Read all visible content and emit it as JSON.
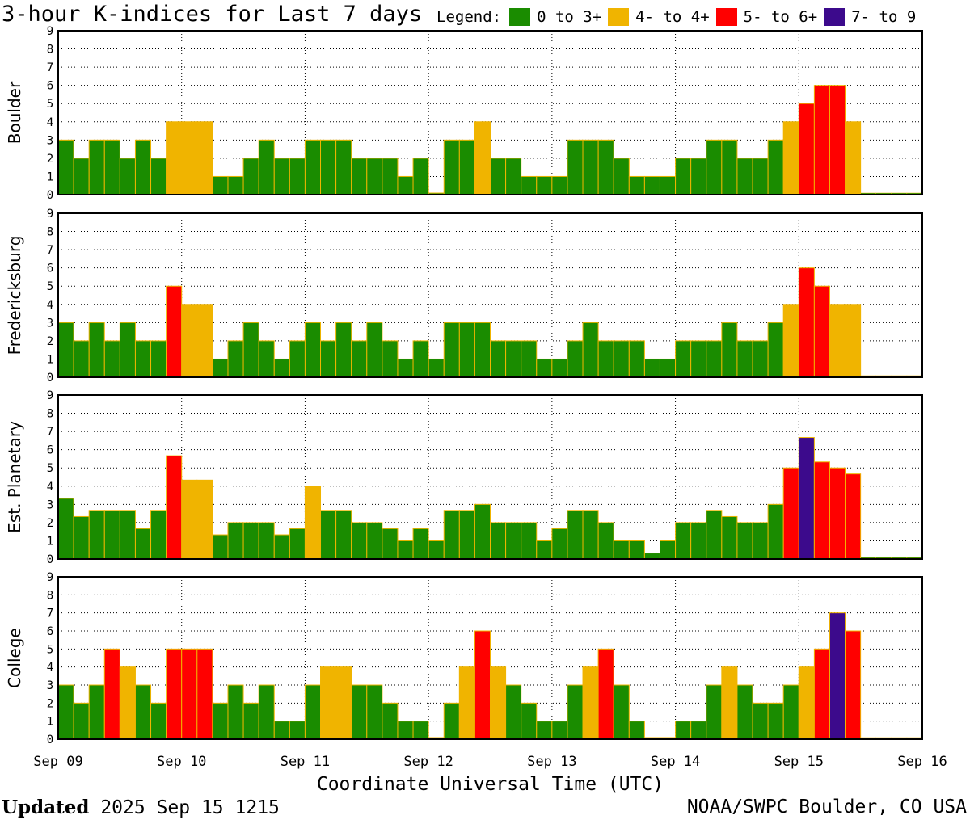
{
  "title": "3-hour K-indices for Last 7 days",
  "legend": {
    "label": "Legend:",
    "items": [
      {
        "label": "0 to 3+",
        "color": "#1a8c00"
      },
      {
        "label": "4- to 4+",
        "color": "#f0b400"
      },
      {
        "label": "5- to 6+",
        "color": "#ff0000"
      },
      {
        "label": "7- to 9",
        "color": "#3c0a8c"
      }
    ]
  },
  "footer": {
    "updated_label": "Updated",
    "updated_value": "2025 Sep 15 1215",
    "credit": "NOAA/SWPC Boulder, CO USA"
  },
  "chart_data": {
    "type": "bar",
    "title": "3-hour K-indices for Last 7 days",
    "xlabel": "Coordinate Universal Time (UTC)",
    "x_ticks": [
      "Sep 09",
      "Sep 10",
      "Sep 11",
      "Sep 12",
      "Sep 13",
      "Sep 14",
      "Sep 15",
      "Sep 16"
    ],
    "ylim": [
      0,
      9
    ],
    "y_ticks": [
      "0",
      "1",
      "2",
      "3",
      "4",
      "5",
      "6",
      "7",
      "8",
      "9"
    ],
    "grid": true,
    "bins_per_day": 8,
    "series": [
      {
        "name": "Boulder",
        "values": [
          3,
          2,
          3,
          3,
          2,
          3,
          2,
          4,
          4,
          4,
          1,
          1,
          2,
          3,
          2,
          2,
          3,
          3,
          3,
          2,
          2,
          2,
          1,
          2,
          0,
          3,
          3,
          4,
          2,
          2,
          1,
          1,
          1,
          3,
          3,
          3,
          2,
          1,
          1,
          1,
          2,
          2,
          3,
          3,
          2,
          2,
          3,
          4,
          5,
          6,
          6,
          4,
          null,
          null,
          null,
          null
        ]
      },
      {
        "name": "Fredericksburg",
        "values": [
          3,
          2,
          3,
          2,
          3,
          2,
          2,
          5,
          4,
          4,
          1,
          2,
          3,
          2,
          1,
          2,
          3,
          2,
          3,
          2,
          3,
          2,
          1,
          2,
          1,
          3,
          3,
          3,
          2,
          2,
          2,
          1,
          1,
          2,
          3,
          2,
          2,
          2,
          1,
          1,
          2,
          2,
          2,
          3,
          2,
          2,
          3,
          4,
          6,
          5,
          4,
          4,
          null,
          null,
          null,
          null
        ]
      },
      {
        "name": "Est. Planetary",
        "values": [
          3.33,
          2.33,
          2.67,
          2.67,
          2.67,
          1.67,
          2.67,
          5.67,
          4.33,
          4.33,
          1.33,
          2,
          2,
          2,
          1.33,
          1.67,
          4,
          2.67,
          2.67,
          2,
          2,
          1.67,
          1,
          1.67,
          1,
          2.67,
          2.67,
          3,
          2,
          2,
          2,
          1,
          1.67,
          2.67,
          2.67,
          2,
          1,
          1,
          0.33,
          1,
          2,
          2,
          2.67,
          2.33,
          2,
          2,
          3,
          5,
          6.67,
          5.33,
          5,
          4.67,
          null,
          null,
          null,
          null
        ]
      },
      {
        "name": "College",
        "values": [
          3,
          2,
          3,
          5,
          4,
          3,
          2,
          5,
          5,
          5,
          2,
          3,
          2,
          3,
          1,
          1,
          3,
          4,
          4,
          3,
          3,
          2,
          1,
          1,
          0,
          2,
          4,
          6,
          4,
          3,
          2,
          1,
          1,
          3,
          4,
          5,
          3,
          1,
          0,
          0,
          1,
          1,
          3,
          4,
          3,
          2,
          2,
          3,
          4,
          5,
          7,
          6,
          null,
          null,
          null,
          null
        ]
      }
    ]
  }
}
